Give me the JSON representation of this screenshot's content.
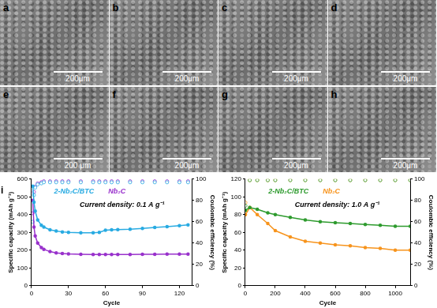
{
  "micrographs": [
    {
      "label": "a",
      "scale_bar": "200μm"
    },
    {
      "label": "b",
      "scale_bar": "200μm"
    },
    {
      "label": "c",
      "scale_bar": "200μm"
    },
    {
      "label": "d",
      "scale_bar": "200μm"
    },
    {
      "label": "e",
      "scale_bar": "200 μm"
    },
    {
      "label": "f",
      "scale_bar": "200μm"
    },
    {
      "label": "g",
      "scale_bar": "200μm"
    },
    {
      "label": "h",
      "scale_bar": "200μm"
    }
  ],
  "chart_data": [
    {
      "type": "line",
      "label": "i",
      "x_label": "Cycle",
      "y_label": "Specific capacity (mAh g⁻¹)",
      "y2_label": "Coulombic efficiency (%)",
      "annotations": [
        "Current density: 0.1 A g⁻¹"
      ],
      "x": [
        1,
        2,
        3,
        5,
        8,
        10,
        15,
        20,
        25,
        30,
        40,
        50,
        55,
        60,
        65,
        70,
        80,
        90,
        100,
        110,
        120,
        127
      ],
      "xlim": [
        0,
        130
      ],
      "xticks": [
        0,
        30,
        60,
        90,
        120
      ],
      "ylim": [
        0,
        600
      ],
      "yticks": [
        0,
        100,
        200,
        300,
        400,
        500,
        600
      ],
      "y2lim": [
        0,
        100
      ],
      "y2ticks": [
        0,
        20,
        40,
        60,
        80,
        100
      ],
      "grid": false,
      "series": [
        {
          "name": "2-Nb₂C/BTC",
          "color": "#29abe2",
          "marker": "circle",
          "line_style": "solid",
          "values": [
            560,
            470,
            420,
            370,
            340,
            330,
            315,
            308,
            303,
            300,
            298,
            298,
            300,
            312,
            315,
            316,
            318,
            322,
            328,
            332,
            338,
            342
          ]
        },
        {
          "name": "Nb₂C",
          "color": "#9932cc",
          "marker": "circle",
          "line_style": "solid",
          "values": [
            480,
            330,
            280,
            240,
            215,
            205,
            192,
            185,
            181,
            179,
            177,
            176,
            176,
            176,
            176,
            176,
            176,
            177,
            177,
            178,
            178,
            178
          ]
        },
        {
          "name": "2-Nb₂C/BTC",
          "color": "#29abe2",
          "marker": "open_circle",
          "axis": "y2",
          "values": [
            60,
            85,
            92,
            95,
            96,
            97,
            97,
            97,
            97,
            97,
            97,
            97,
            97,
            97,
            97,
            97,
            97,
            97,
            97,
            97,
            97,
            97
          ]
        },
        {
          "name": "Nb₂C",
          "color": "#9932cc",
          "marker": "open_circle",
          "axis": "y2",
          "values": [
            68,
            88,
            93,
            96,
            97,
            98,
            98,
            98,
            98,
            98,
            98,
            98,
            98,
            98,
            98,
            98,
            98,
            98,
            98,
            98,
            98,
            98
          ]
        }
      ]
    },
    {
      "type": "line",
      "x_label": "Cycle",
      "y_label": "Specific capacity (mAh g⁻¹)",
      "y2_label": "Coulombic efficiency (%)",
      "annotations": [
        "Current density: 1.0 A g⁻¹"
      ],
      "x": [
        1,
        30,
        80,
        150,
        200,
        300,
        400,
        500,
        600,
        700,
        800,
        900,
        1000,
        1100
      ],
      "xlim": [
        0,
        1100
      ],
      "xticks": [
        0,
        200,
        400,
        600,
        800,
        1000
      ],
      "ylim": [
        0,
        120
      ],
      "yticks": [
        0,
        20,
        40,
        60,
        80,
        100,
        120
      ],
      "y2lim": [
        0,
        100
      ],
      "y2ticks": [
        0,
        20,
        40,
        60,
        80,
        100
      ],
      "grid": false,
      "series": [
        {
          "name": "2-Nb₂C/BTC",
          "color": "#2e9b2e",
          "marker": "circle",
          "line_style": "solid",
          "values": [
            85,
            88,
            86,
            82,
            80,
            77,
            74,
            72,
            71,
            70,
            69,
            68,
            67,
            67
          ]
        },
        {
          "name": "Nb₂C",
          "color": "#f7941d",
          "marker": "circle",
          "line_style": "solid",
          "values": [
            80,
            88,
            80,
            70,
            62,
            55,
            50,
            48,
            46,
            45,
            43,
            42,
            40,
            40
          ]
        },
        {
          "name": "2-Nb₂C/BTC",
          "color": "#2e9b2e",
          "marker": "open_circle",
          "axis": "y2",
          "values": [
            75,
            99,
            99,
            99,
            99,
            99,
            99,
            99,
            99,
            99,
            99,
            99,
            99,
            99
          ]
        },
        {
          "name": "Nb₂C",
          "color": "#f7941d",
          "marker": "open_circle",
          "axis": "y2",
          "values": [
            78,
            99,
            99,
            99,
            99,
            99,
            99,
            99,
            99,
            99,
            99,
            99,
            99,
            99
          ]
        }
      ]
    }
  ]
}
